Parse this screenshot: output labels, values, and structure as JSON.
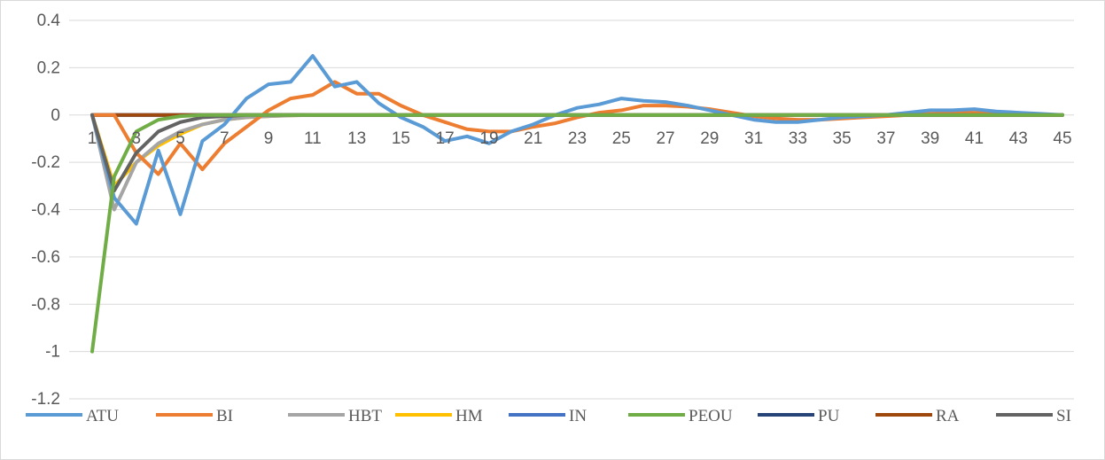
{
  "chart_data": {
    "type": "line",
    "title": "",
    "xlabel": "",
    "ylabel": "",
    "x": [
      1,
      2,
      3,
      4,
      5,
      6,
      7,
      8,
      9,
      10,
      11,
      12,
      13,
      14,
      15,
      16,
      17,
      18,
      19,
      20,
      21,
      22,
      23,
      24,
      25,
      26,
      27,
      28,
      29,
      30,
      31,
      32,
      33,
      34,
      35,
      36,
      37,
      38,
      39,
      40,
      41,
      42,
      43,
      44,
      45
    ],
    "x_tick_labels": [
      "1",
      "3",
      "5",
      "7",
      "9",
      "11",
      "13",
      "15",
      "17",
      "19",
      "21",
      "23",
      "25",
      "27",
      "29",
      "31",
      "33",
      "35",
      "37",
      "39",
      "41",
      "43",
      "45"
    ],
    "y_tick_labels": [
      "0.4",
      "0.2",
      "0",
      "-0.2",
      "-0.4",
      "-0.6",
      "-0.8",
      "-1",
      "-1.2"
    ],
    "ylim": [
      -1.2,
      0.4
    ],
    "y_gridlines": true,
    "legend_position": "bottom",
    "series": [
      {
        "name": "ATU",
        "color": "#5b9bd5",
        "values": [
          0,
          -0.35,
          -0.46,
          -0.15,
          -0.42,
          -0.11,
          -0.04,
          0.07,
          0.13,
          0.14,
          0.25,
          0.12,
          0.14,
          0.05,
          -0.01,
          -0.05,
          -0.11,
          -0.09,
          -0.12,
          -0.07,
          -0.04,
          0.0,
          0.03,
          0.045,
          0.07,
          0.06,
          0.055,
          0.04,
          0.02,
          0.0,
          -0.02,
          -0.03,
          -0.03,
          -0.02,
          -0.01,
          -0.005,
          0.0,
          0.01,
          0.02,
          0.02,
          0.025,
          0.015,
          0.01,
          0.005,
          0
        ]
      },
      {
        "name": "BI",
        "color": "#ed7d31",
        "values": [
          0,
          0,
          -0.16,
          -0.25,
          -0.12,
          -0.23,
          -0.12,
          -0.05,
          0.02,
          0.07,
          0.085,
          0.14,
          0.09,
          0.09,
          0.04,
          0.0,
          -0.03,
          -0.06,
          -0.07,
          -0.07,
          -0.05,
          -0.035,
          -0.01,
          0.01,
          0.02,
          0.04,
          0.04,
          0.035,
          0.025,
          0.01,
          -0.005,
          -0.015,
          -0.02,
          -0.02,
          -0.015,
          -0.01,
          -0.005,
          0.0,
          0.005,
          0.01,
          0.01,
          0.008,
          0.005,
          0.002,
          0
        ]
      },
      {
        "name": "HBT",
        "color": "#a5a5a5",
        "values": [
          0,
          -0.4,
          -0.2,
          -0.12,
          -0.07,
          -0.04,
          -0.02,
          -0.01,
          -0.005,
          -0.002,
          0,
          0,
          0,
          0,
          0,
          0,
          0,
          0,
          0,
          0,
          0,
          0,
          0,
          0,
          0,
          0,
          0,
          0,
          0,
          0,
          0,
          0,
          0,
          0,
          0,
          0,
          0,
          0,
          0,
          0,
          0,
          0,
          0,
          0,
          0
        ]
      },
      {
        "name": "HM",
        "color": "#ffc000",
        "values": [
          0,
          -0.3,
          -0.2,
          -0.13,
          -0.08,
          -0.04,
          -0.02,
          -0.01,
          -0.005,
          -0.002,
          0,
          0,
          0,
          0,
          0,
          0,
          0,
          0,
          0,
          0,
          0,
          0,
          0,
          0,
          0,
          0,
          0,
          0,
          0,
          0,
          0,
          0,
          0,
          0,
          0,
          0,
          0,
          0,
          0,
          0,
          0,
          0,
          0,
          0,
          0
        ]
      },
      {
        "name": "IN",
        "color": "#4472c4",
        "values": [
          0,
          0,
          0,
          0,
          0,
          0,
          0,
          0,
          0,
          0,
          0,
          0,
          0,
          0,
          0,
          0,
          0,
          0,
          0,
          0,
          0,
          0,
          0,
          0,
          0,
          0,
          0,
          0,
          0,
          0,
          0,
          0,
          0,
          0,
          0,
          0,
          0,
          0,
          0,
          0,
          0,
          0,
          0,
          0,
          0
        ]
      },
      {
        "name": "PEOU",
        "color": "#70ad47",
        "values": [
          -1,
          -0.26,
          -0.07,
          -0.02,
          -0.005,
          0,
          0,
          0,
          0,
          0,
          0,
          0,
          0,
          0,
          0,
          0,
          0,
          0,
          0,
          0,
          0,
          0,
          0,
          0,
          0,
          0,
          0,
          0,
          0,
          0,
          0,
          0,
          0,
          0,
          0,
          0,
          0,
          0,
          0,
          0,
          0,
          0,
          0,
          0,
          0
        ]
      },
      {
        "name": "PU",
        "color": "#264478",
        "values": [
          0,
          0,
          0,
          0,
          0,
          0,
          0,
          0,
          0,
          0,
          0,
          0,
          0,
          0,
          0,
          0,
          0,
          0,
          0,
          0,
          0,
          0,
          0,
          0,
          0,
          0,
          0,
          0,
          0,
          0,
          0,
          0,
          0,
          0,
          0,
          0,
          0,
          0,
          0,
          0,
          0,
          0,
          0,
          0,
          0
        ]
      },
      {
        "name": "RA",
        "color": "#9e480e",
        "values": [
          0,
          0,
          0,
          0,
          0,
          0,
          0,
          0,
          0,
          0,
          0,
          0,
          0,
          0,
          0,
          0,
          0,
          0,
          0,
          0,
          0,
          0,
          0,
          0,
          0,
          0,
          0,
          0,
          0,
          0,
          0,
          0,
          0,
          0,
          0,
          0,
          0,
          0,
          0,
          0,
          0,
          0,
          0,
          0,
          0
        ]
      },
      {
        "name": "SI",
        "color": "#636363",
        "values": [
          0,
          -0.32,
          -0.16,
          -0.07,
          -0.03,
          -0.01,
          -0.005,
          0,
          0,
          0,
          0,
          0,
          0,
          0,
          0,
          0,
          0,
          0,
          0,
          0,
          0,
          0,
          0,
          0,
          0,
          0,
          0,
          0,
          0,
          0,
          0,
          0,
          0,
          0,
          0,
          0,
          0,
          0,
          0,
          0,
          0,
          0,
          0,
          0,
          0
        ]
      }
    ]
  }
}
